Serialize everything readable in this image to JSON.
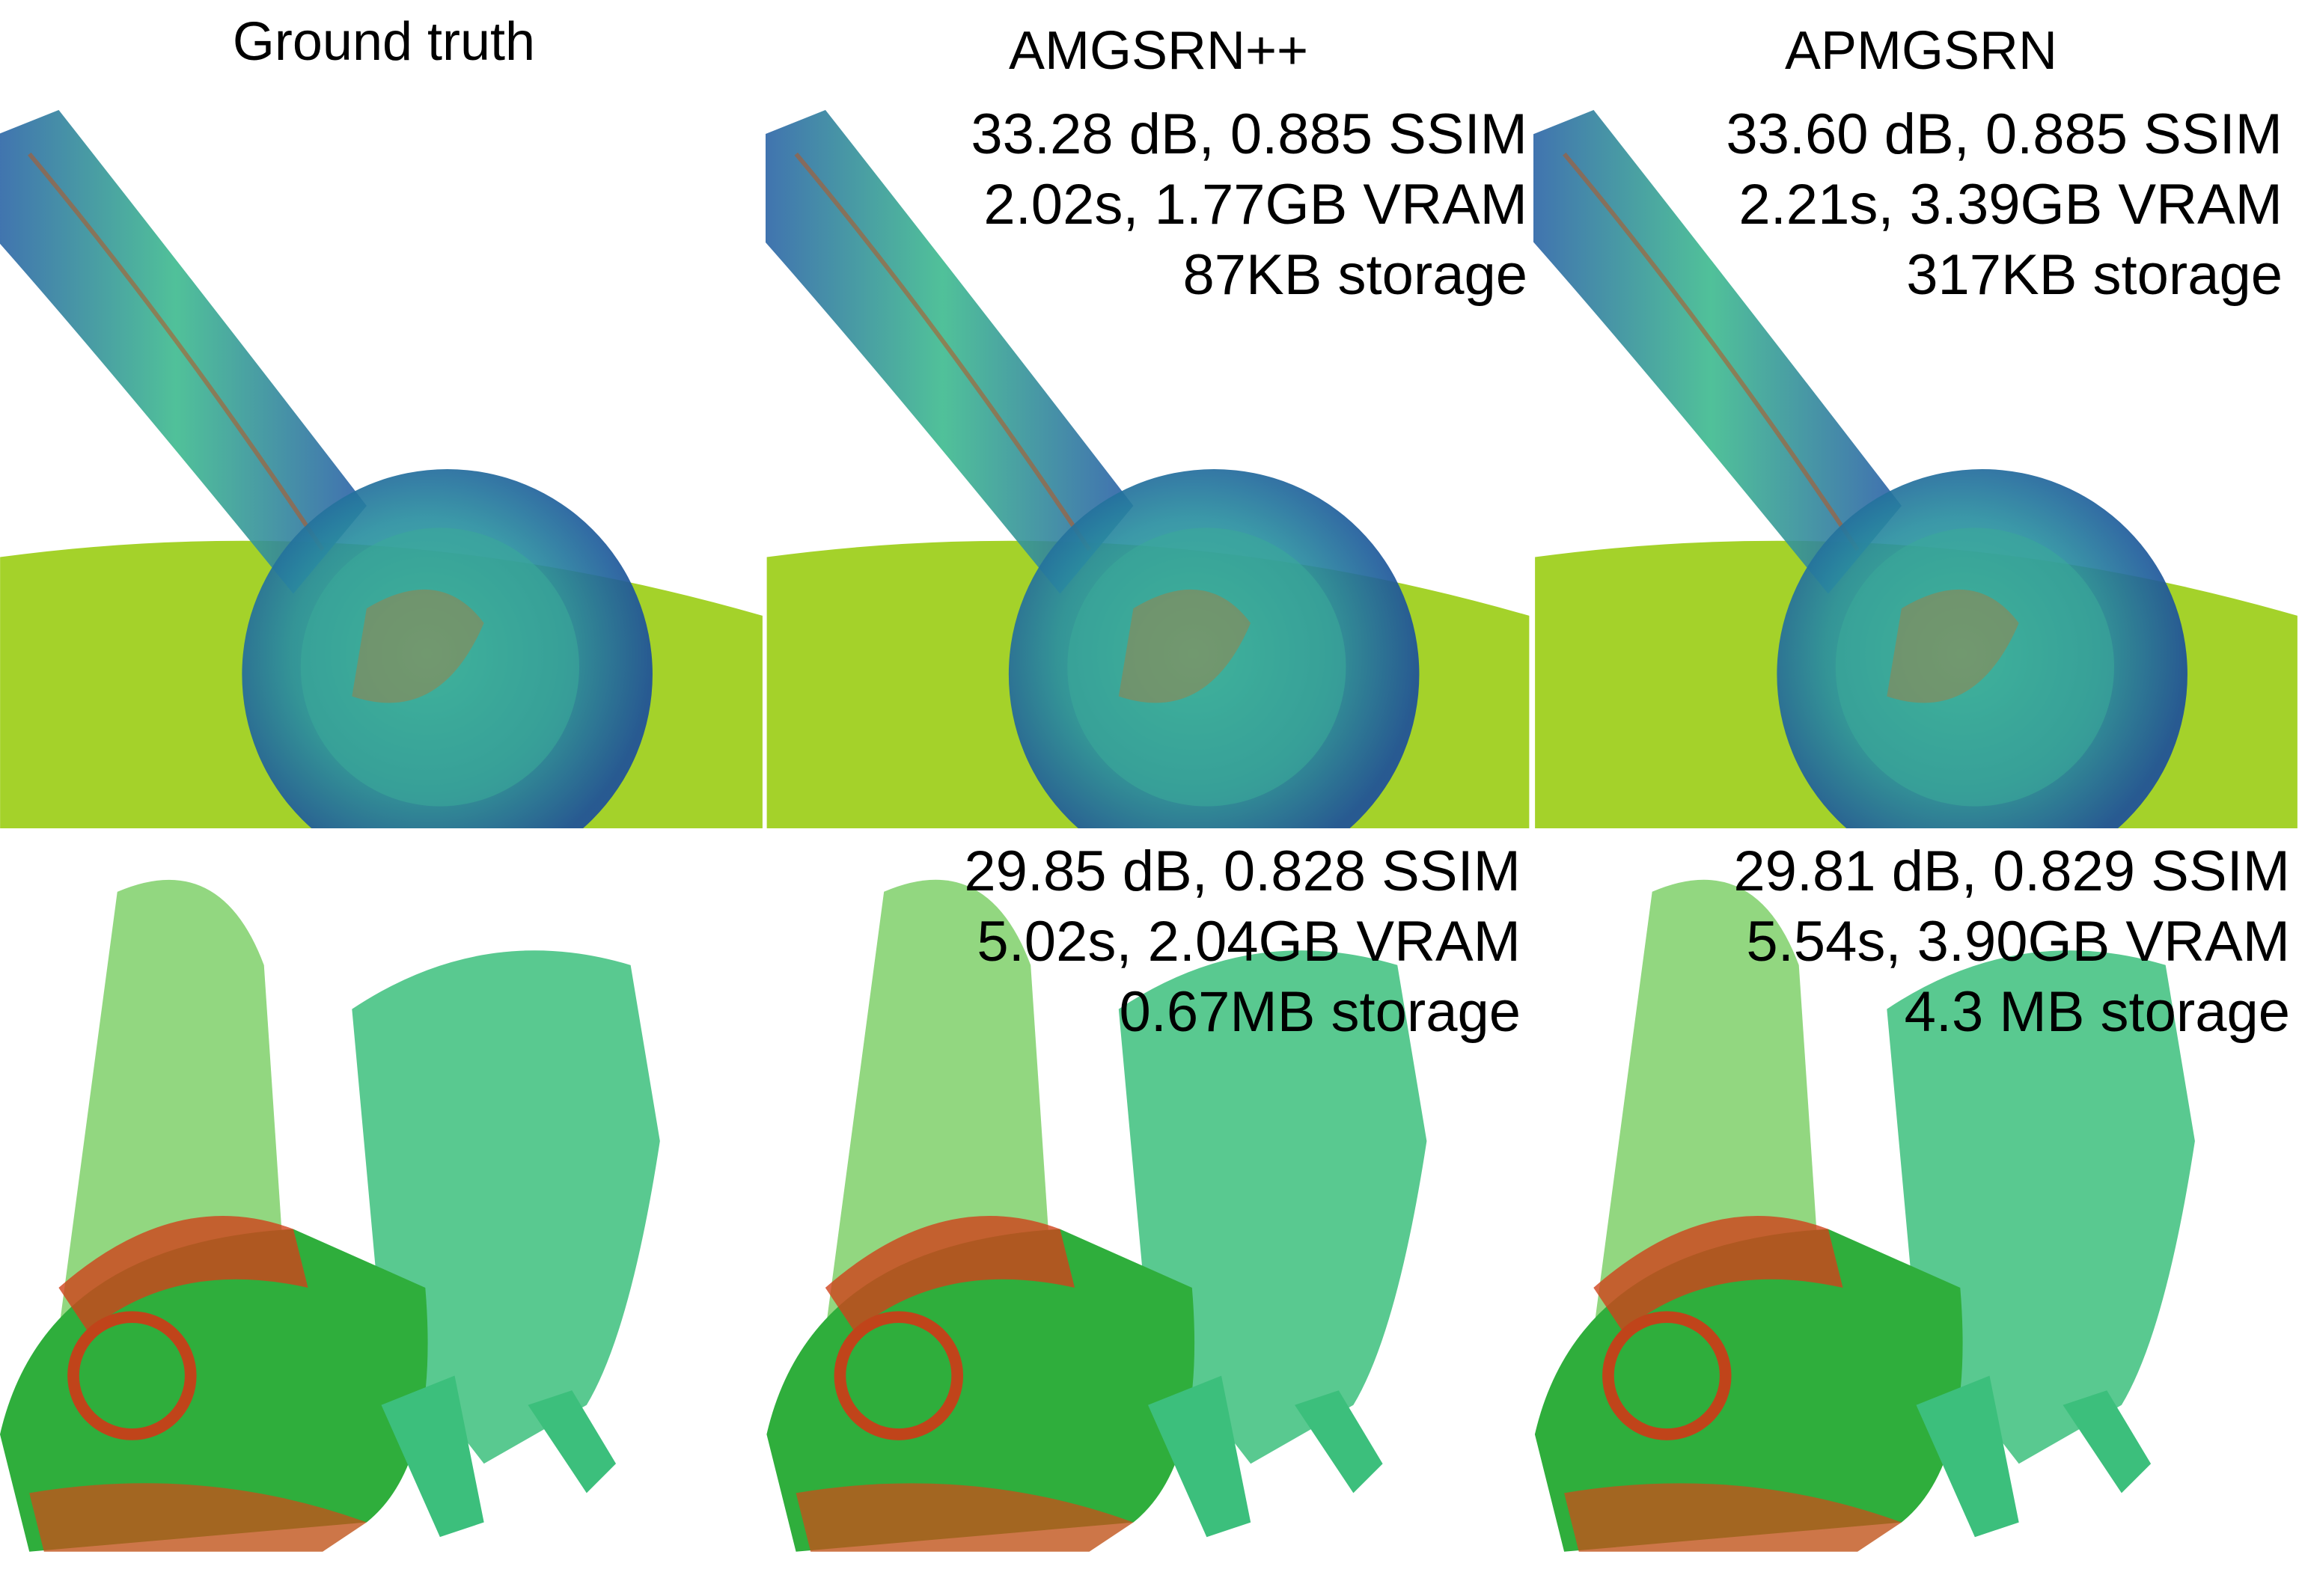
{
  "header": {
    "columns": [
      "Ground truth",
      "AMGSRN++",
      "APMGSRN"
    ]
  },
  "rows": [
    {
      "results": [
        {
          "lines": [
            "33.28 dB, 0.885 SSIM",
            "2.02s, 1.77GB VRAM",
            "87KB storage"
          ]
        },
        {
          "lines": [
            "33.60 dB, 0.885 SSIM",
            "2.21s, 3.39GB VRAM",
            "317KB storage"
          ]
        }
      ]
    },
    {
      "results": [
        {
          "lines": [
            "29.85 dB, 0.828 SSIM",
            "5.02s, 2.04GB VRAM",
            "0.67MB storage"
          ]
        },
        {
          "lines": [
            "29.81 dB, 0.829 SSIM",
            "5.54s, 3.90GB VRAM",
            "4.3 MB storage"
          ]
        }
      ]
    }
  ]
}
